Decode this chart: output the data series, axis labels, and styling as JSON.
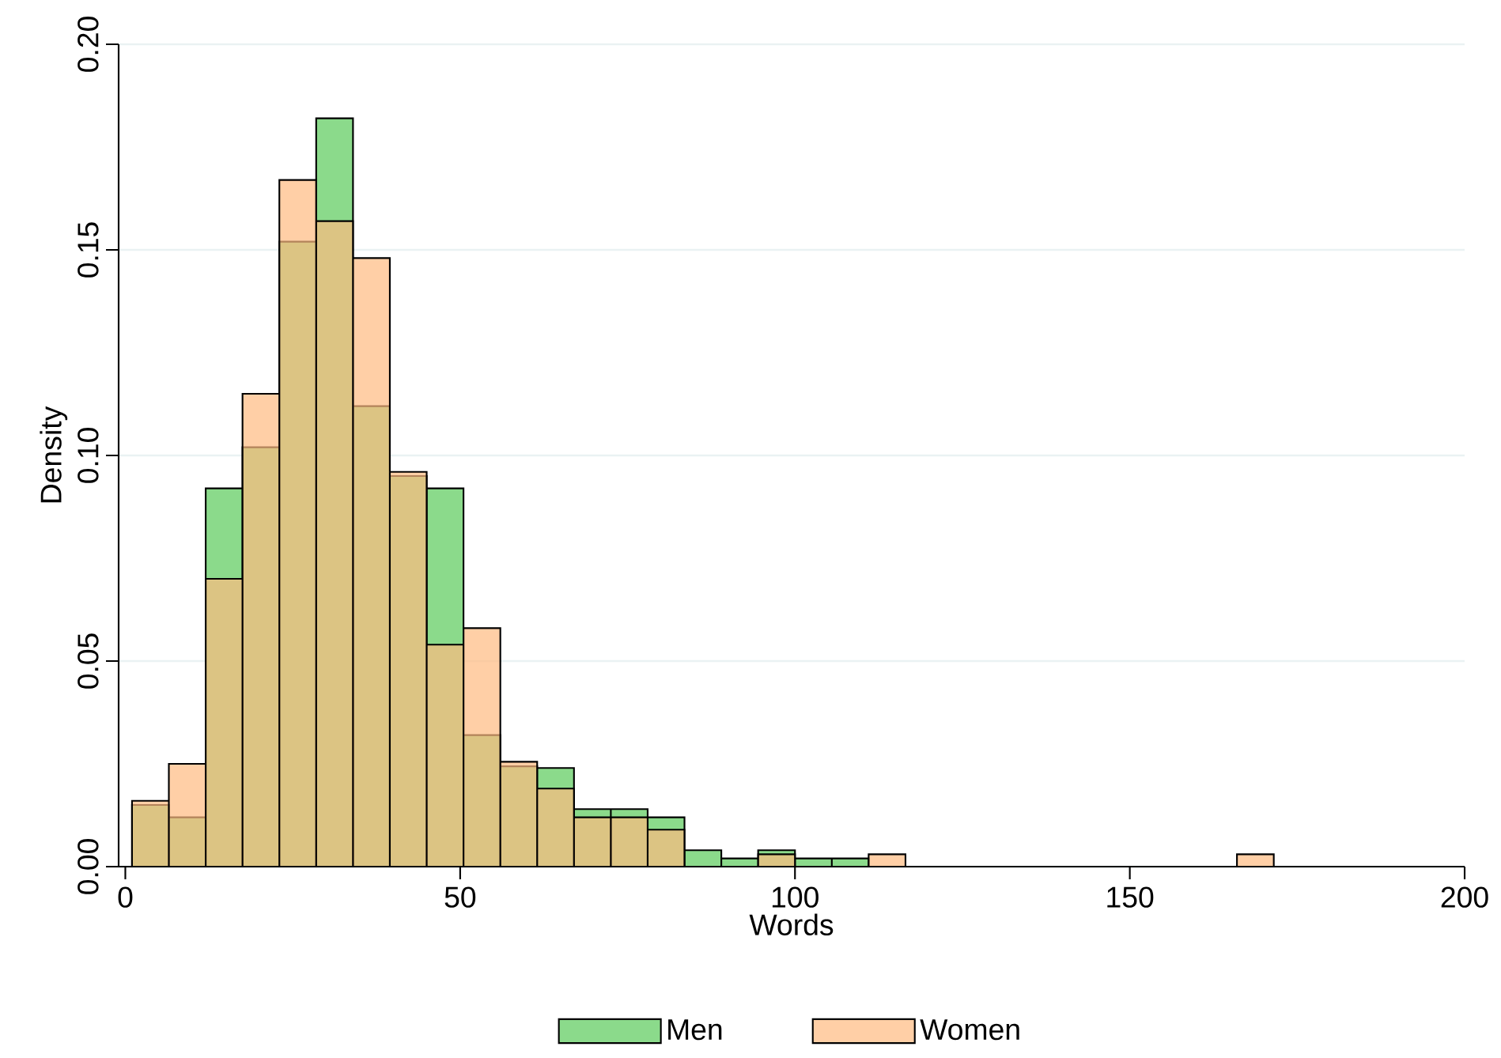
{
  "chart_data": {
    "type": "histogram",
    "xlabel": "Words",
    "ylabel": "Density",
    "bins": [
      1,
      6.5,
      12,
      17.5,
      23,
      28.5,
      34,
      39.5,
      45,
      50.5,
      56,
      61.5,
      67,
      72.5,
      78,
      83.5,
      89,
      94.5,
      100,
      105.5,
      111,
      116.5,
      122,
      127.5,
      133,
      138.5,
      144,
      149.5,
      155,
      160.5,
      166,
      171.5
    ],
    "series": [
      {
        "name": "Men",
        "color": "#85d885",
        "values": [
          0.015,
          0.012,
          0.092,
          0.102,
          0.152,
          0.182,
          0.112,
          0.095,
          0.092,
          0.032,
          0.0244,
          0.024,
          0.014,
          0.014,
          0.012,
          0.004,
          0.002,
          0.004,
          0.002,
          0.002,
          0,
          0,
          0,
          0,
          0,
          0,
          0,
          0,
          0,
          0,
          0
        ]
      },
      {
        "name": "Women",
        "color": "#ffbb80",
        "values": [
          0.016,
          0.025,
          0.07,
          0.115,
          0.167,
          0.157,
          0.148,
          0.096,
          0.054,
          0.058,
          0.0255,
          0.019,
          0.012,
          0.012,
          0.009,
          0,
          0,
          0.003,
          0,
          0,
          0.003,
          0,
          0,
          0,
          0,
          0,
          0,
          0,
          0,
          0,
          0.003
        ]
      }
    ],
    "xlim": [
      -1,
      200
    ],
    "ylim": [
      0,
      0.2
    ],
    "xticks": [
      0,
      50,
      100,
      150,
      200
    ],
    "yticks": [
      {
        "value": 0,
        "label": "0.00"
      },
      0.05,
      {
        "value": 0.1,
        "label": "0.10"
      },
      0.15,
      {
        "value": 0.2,
        "label": "0.20"
      }
    ],
    "grid": "y",
    "legend": "bottom"
  }
}
